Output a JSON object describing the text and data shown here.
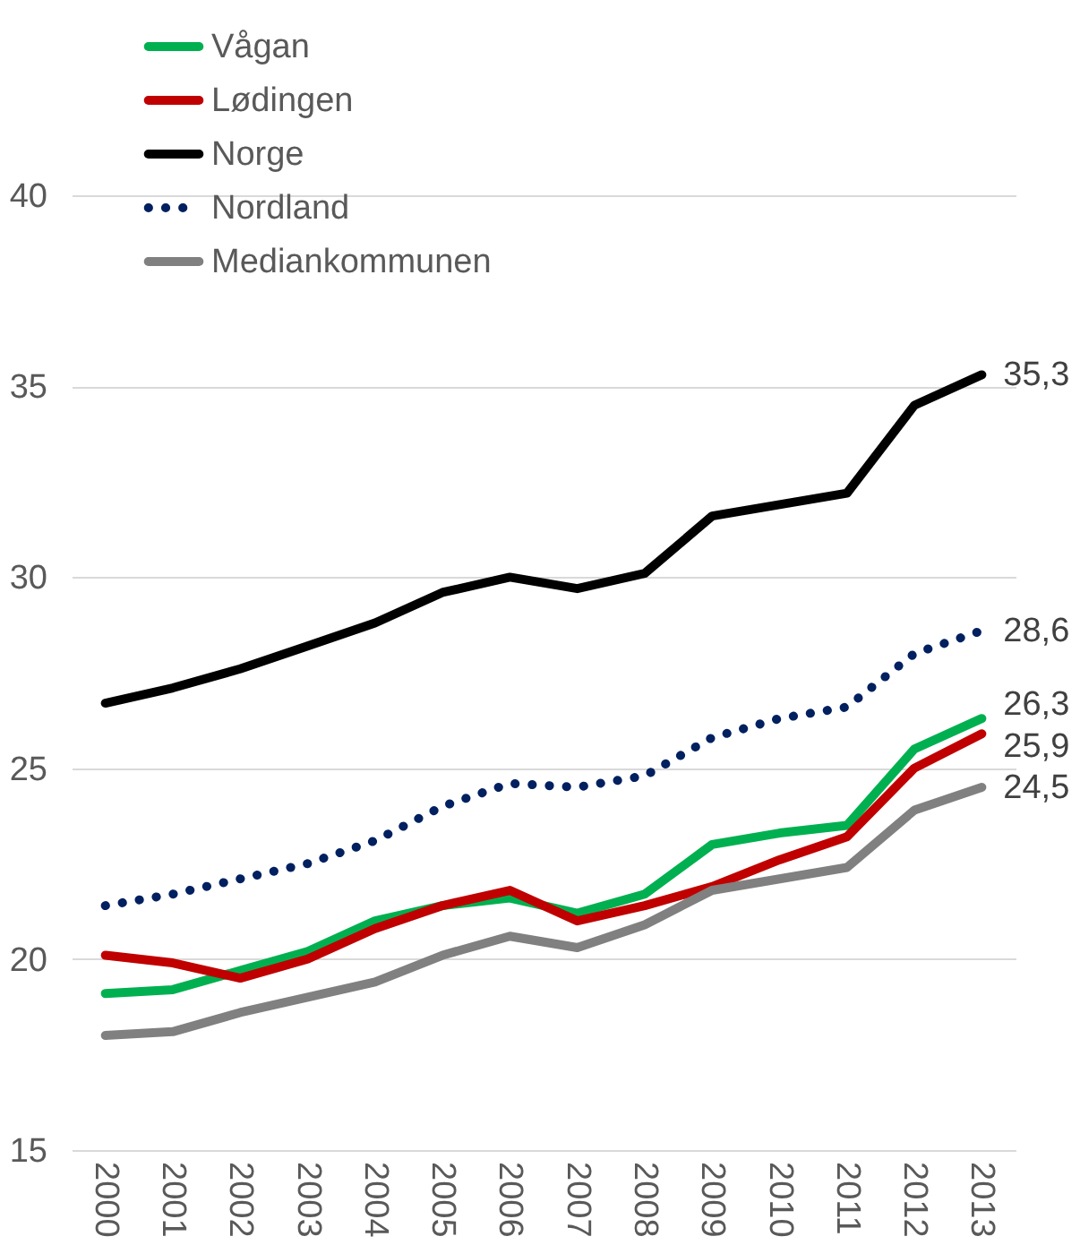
{
  "chart_data": {
    "type": "line",
    "categories": [
      "2000",
      "2001",
      "2002",
      "2003",
      "2004",
      "2005",
      "2006",
      "2007",
      "2008",
      "2009",
      "2010",
      "2011",
      "2012",
      "2013"
    ],
    "ylim": [
      15,
      40
    ],
    "yticks": [
      15,
      20,
      25,
      30,
      35,
      40
    ],
    "grid": "y",
    "legend": "top",
    "series": [
      {
        "name": "Vågan",
        "color": "#00b050",
        "values": [
          19.1,
          19.2,
          19.7,
          20.2,
          21.0,
          21.4,
          21.6,
          21.2,
          21.7,
          23.0,
          23.3,
          23.5,
          25.5,
          26.3
        ],
        "value_labels": [
          null,
          null,
          null,
          null,
          null,
          null,
          null,
          null,
          null,
          null,
          null,
          null,
          null,
          "26,3"
        ]
      },
      {
        "name": "Lødingen",
        "color": "#c00000",
        "values": [
          20.1,
          19.9,
          19.5,
          20.0,
          20.8,
          21.4,
          21.8,
          21.0,
          21.4,
          21.9,
          22.6,
          23.2,
          25.0,
          25.9
        ],
        "value_labels": [
          null,
          null,
          null,
          null,
          null,
          null,
          null,
          null,
          null,
          null,
          null,
          null,
          null,
          "25,9"
        ]
      },
      {
        "name": "Norge",
        "color": "#000000",
        "values": [
          26.7,
          27.1,
          27.6,
          28.2,
          28.8,
          29.6,
          30.0,
          29.7,
          30.1,
          31.6,
          31.9,
          32.2,
          34.5,
          35.3
        ],
        "value_labels": [
          null,
          null,
          null,
          null,
          null,
          null,
          null,
          null,
          null,
          null,
          null,
          null,
          null,
          "35,3"
        ]
      },
      {
        "name": "Nordland",
        "color": "#002060",
        "line_style": "dotted",
        "values": [
          21.4,
          21.7,
          22.1,
          22.5,
          23.1,
          24.0,
          24.6,
          24.5,
          24.8,
          25.8,
          26.3,
          26.6,
          28.0,
          28.6
        ],
        "value_labels": [
          null,
          null,
          null,
          null,
          null,
          null,
          null,
          null,
          null,
          null,
          null,
          null,
          null,
          "28,6"
        ]
      },
      {
        "name": "Mediankommunen",
        "color": "#808080",
        "values": [
          18.0,
          18.1,
          18.6,
          19.0,
          19.4,
          20.1,
          20.6,
          20.3,
          20.9,
          21.8,
          22.1,
          22.4,
          23.9,
          24.5
        ],
        "value_labels": [
          null,
          null,
          null,
          null,
          null,
          null,
          null,
          null,
          null,
          null,
          null,
          null,
          null,
          "24,5"
        ]
      }
    ]
  }
}
